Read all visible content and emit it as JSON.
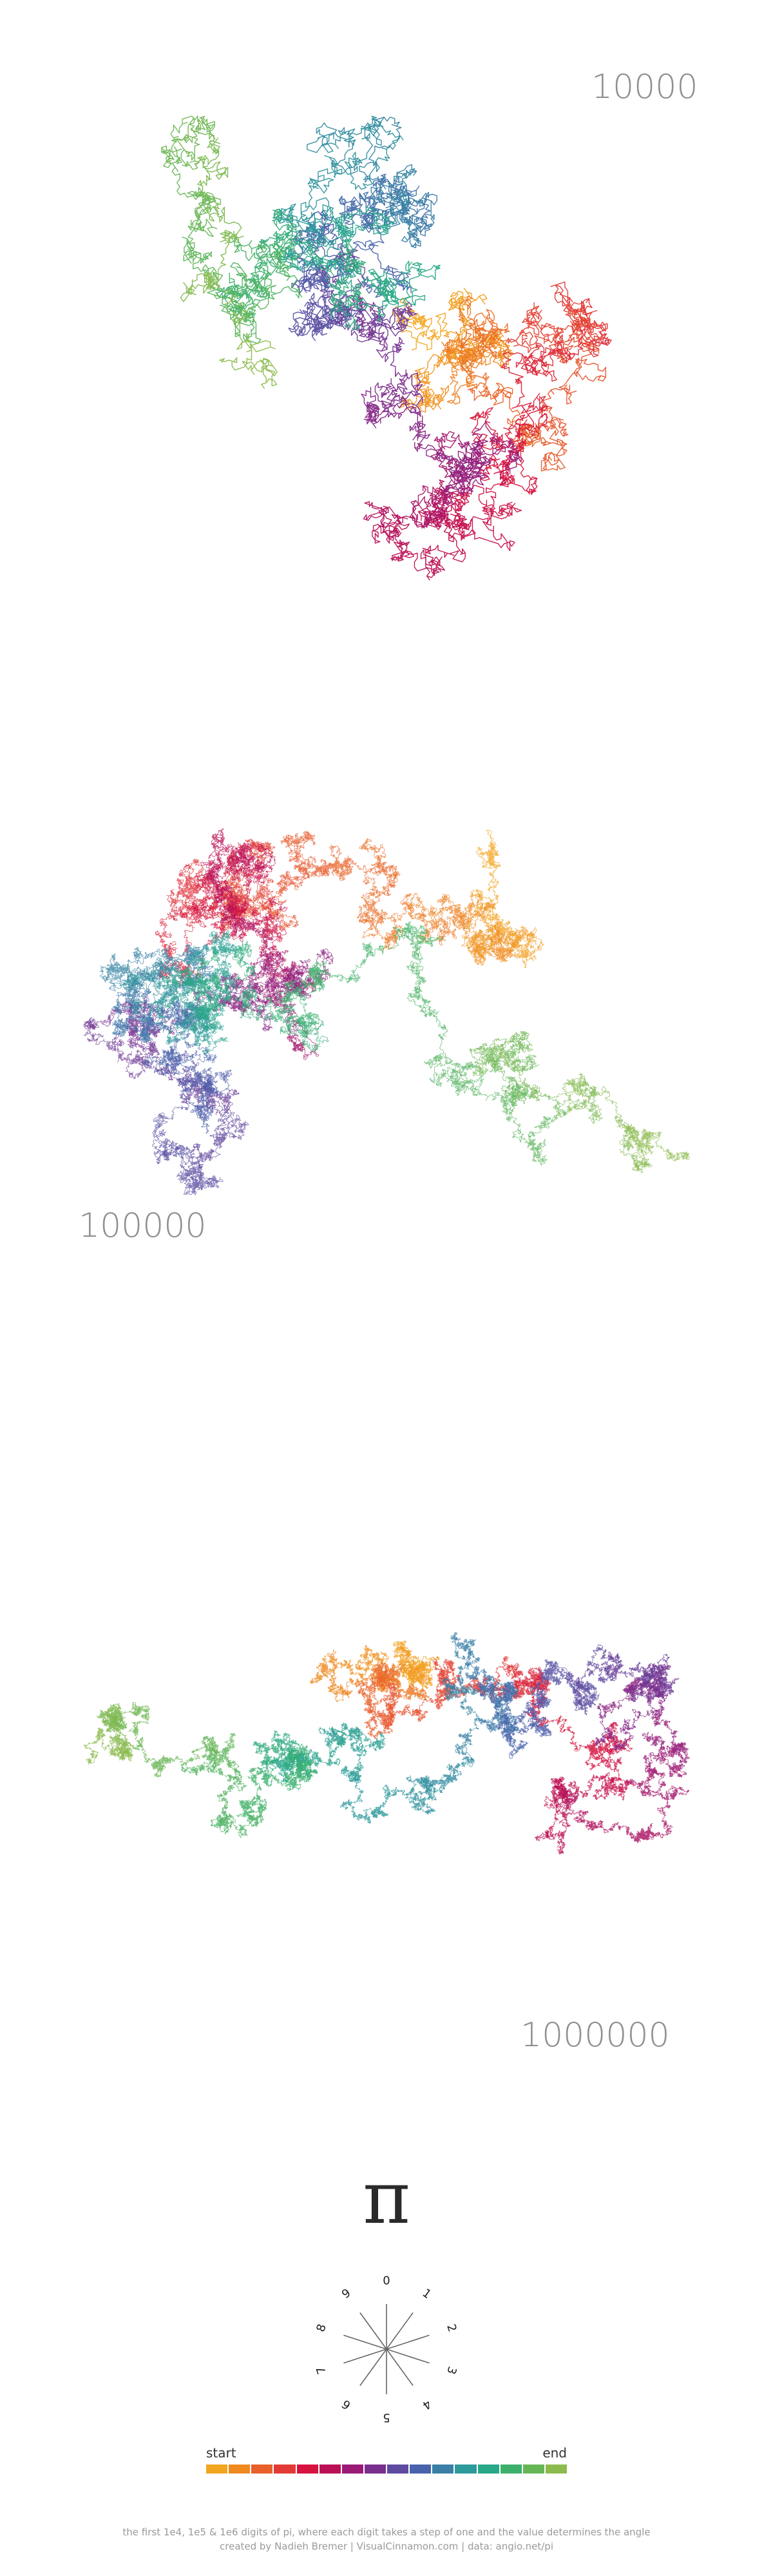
{
  "panels": [
    {
      "label": "10000",
      "steps": 10000
    },
    {
      "label": "100000",
      "steps": 100000
    },
    {
      "label": "1000000",
      "steps": 1000000
    }
  ],
  "pi_symbol": "π",
  "compass": {
    "digits": [
      "0",
      "1",
      "2",
      "3",
      "4",
      "5",
      "6",
      "7",
      "8",
      "9"
    ],
    "line_color": "#666666"
  },
  "legend": {
    "start_label": "start",
    "end_label": "end",
    "colors": [
      "#f2a51f",
      "#ef8a21",
      "#e8602a",
      "#e23b35",
      "#d6123f",
      "#bb1055",
      "#9b1a76",
      "#7a2e8e",
      "#5e4ba1",
      "#4863ab",
      "#3a7fa7",
      "#2d9a9b",
      "#29a887",
      "#3db06b",
      "#66b657",
      "#8cba4c"
    ]
  },
  "footer": {
    "line1": "the first 1e4, 1e5 & 1e6 digits of pi, where each digit takes a step of one and the value determines the angle",
    "line2": "created by Nadieh Bremer | VisualCinnamon.com | data: angio.net/pi"
  }
}
